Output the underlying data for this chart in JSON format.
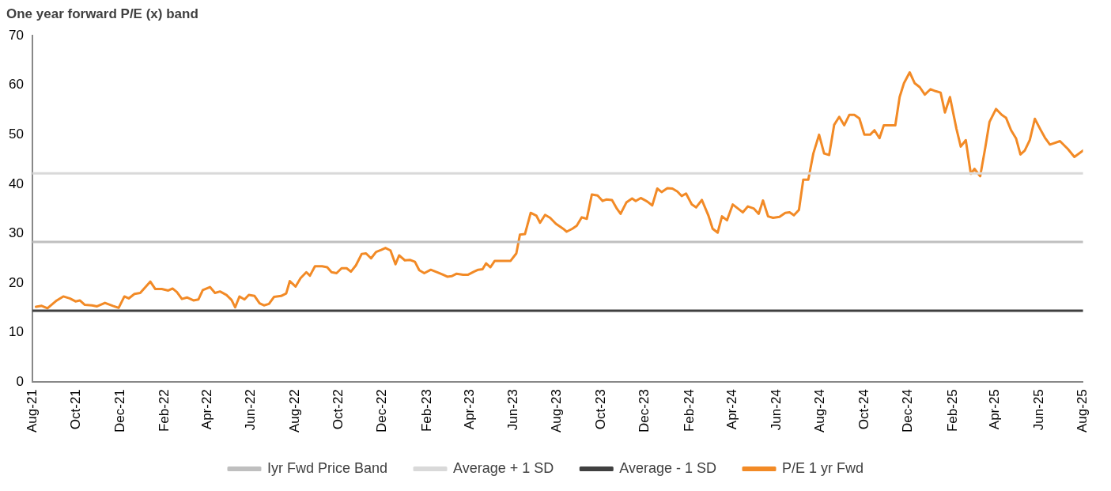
{
  "chart_data": {
    "type": "line",
    "title": "One year forward P/E (x) band",
    "xlim": [
      "2021-08-01",
      "2025-08-01"
    ],
    "xticks": [
      {
        "value": "2021-08-01",
        "label": "Aug-21"
      },
      {
        "value": "2021-10-01",
        "label": "Oct-21"
      },
      {
        "value": "2021-12-01",
        "label": "Dec-21"
      },
      {
        "value": "2022-02-01",
        "label": "Feb-22"
      },
      {
        "value": "2022-04-01",
        "label": "Apr-22"
      },
      {
        "value": "2022-06-01",
        "label": "Jun-22"
      },
      {
        "value": "2022-08-01",
        "label": "Aug-22"
      },
      {
        "value": "2022-10-01",
        "label": "Oct-22"
      },
      {
        "value": "2022-12-01",
        "label": "Dec-22"
      },
      {
        "value": "2023-02-01",
        "label": "Feb-23"
      },
      {
        "value": "2023-04-01",
        "label": "Apr-23"
      },
      {
        "value": "2023-06-01",
        "label": "Jun-23"
      },
      {
        "value": "2023-08-01",
        "label": "Aug-23"
      },
      {
        "value": "2023-10-01",
        "label": "Oct-23"
      },
      {
        "value": "2023-12-01",
        "label": "Dec-23"
      },
      {
        "value": "2024-02-01",
        "label": "Feb-24"
      },
      {
        "value": "2024-04-01",
        "label": "Apr-24"
      },
      {
        "value": "2024-06-01",
        "label": "Jun-24"
      },
      {
        "value": "2024-08-01",
        "label": "Aug-24"
      },
      {
        "value": "2024-10-01",
        "label": "Oct-24"
      },
      {
        "value": "2024-12-01",
        "label": "Dec-24"
      },
      {
        "value": "2025-02-01",
        "label": "Feb-25"
      },
      {
        "value": "2025-04-01",
        "label": "Apr-25"
      },
      {
        "value": "2025-06-01",
        "label": "Jun-25"
      },
      {
        "value": "2025-08-01",
        "label": "Aug-25"
      }
    ],
    "ylim": [
      0,
      70
    ],
    "yticks": [
      0,
      10,
      20,
      30,
      40,
      50,
      60,
      70
    ],
    "grid": false,
    "legend": "bottom",
    "marker": "none",
    "line_style": "solid",
    "series": [
      {
        "name": "Iyr Fwd Price Band",
        "color": "#bfbfbf",
        "x": [
          "2021-08-01",
          "2025-08-01"
        ],
        "values": [
          28.3,
          28.3
        ]
      },
      {
        "name": "Average + 1 SD",
        "color": "#d9d9d9",
        "x": [
          "2021-08-01",
          "2025-08-01"
        ],
        "values": [
          42.2,
          42.2
        ]
      },
      {
        "name": "Average - 1 SD",
        "color": "#404040",
        "x": [
          "2021-08-01",
          "2025-08-01"
        ],
        "values": [
          14.4,
          14.4
        ]
      },
      {
        "name": "P/E 1 yr Fwd",
        "color": "#f28a26",
        "x": [
          "2021-08-06",
          "2021-08-14",
          "2021-08-22",
          "2021-09-04",
          "2021-09-13",
          "2021-09-22",
          "2021-09-30",
          "2021-10-06",
          "2021-10-13",
          "2021-10-23",
          "2021-10-30",
          "2021-11-10",
          "2021-11-21",
          "2021-11-29",
          "2021-12-07",
          "2021-12-13",
          "2021-12-21",
          "2021-12-29",
          "2022-01-12",
          "2022-01-19",
          "2022-01-28",
          "2022-02-06",
          "2022-02-12",
          "2022-02-18",
          "2022-02-25",
          "2022-03-04",
          "2022-03-13",
          "2022-03-20",
          "2022-03-26",
          "2022-04-05",
          "2022-04-12",
          "2022-04-19",
          "2022-04-28",
          "2022-05-05",
          "2022-05-10",
          "2022-05-16",
          "2022-05-23",
          "2022-05-29",
          "2022-06-06",
          "2022-06-13",
          "2022-06-19",
          "2022-06-26",
          "2022-07-03",
          "2022-07-13",
          "2022-07-20",
          "2022-07-25",
          "2022-08-02",
          "2022-08-09",
          "2022-08-17",
          "2022-08-22",
          "2022-08-29",
          "2022-09-08",
          "2022-09-15",
          "2022-09-21",
          "2022-09-28",
          "2022-10-05",
          "2022-10-12",
          "2022-10-18",
          "2022-10-25",
          "2022-11-02",
          "2022-11-08",
          "2022-11-15",
          "2022-11-22",
          "2022-11-29",
          "2022-12-05",
          "2022-12-12",
          "2022-12-19",
          "2022-12-24",
          "2023-01-01",
          "2023-01-08",
          "2023-01-15",
          "2023-01-21",
          "2023-01-28",
          "2023-02-06",
          "2023-02-15",
          "2023-02-23",
          "2023-03-01",
          "2023-03-07",
          "2023-03-14",
          "2023-03-23",
          "2023-03-30",
          "2023-04-07",
          "2023-04-13",
          "2023-04-19",
          "2023-04-24",
          "2023-04-30",
          "2023-05-06",
          "2023-05-17",
          "2023-05-28",
          "2023-06-05",
          "2023-06-10",
          "2023-06-17",
          "2023-06-25",
          "2023-07-03",
          "2023-07-08",
          "2023-07-15",
          "2023-07-22",
          "2023-07-30",
          "2023-08-09",
          "2023-08-14",
          "2023-08-22",
          "2023-08-28",
          "2023-09-04",
          "2023-09-11",
          "2023-09-18",
          "2023-09-26",
          "2023-10-03",
          "2023-10-08",
          "2023-10-16",
          "2023-10-23",
          "2023-10-28",
          "2023-11-05",
          "2023-11-13",
          "2023-11-18",
          "2023-11-25",
          "2023-12-04",
          "2023-12-11",
          "2023-12-18",
          "2023-12-24",
          "2024-01-01",
          "2024-01-08",
          "2024-01-15",
          "2024-01-21",
          "2024-01-27",
          "2024-02-04",
          "2024-02-10",
          "2024-02-18",
          "2024-02-27",
          "2024-03-04",
          "2024-03-11",
          "2024-03-17",
          "2024-03-24",
          "2024-04-01",
          "2024-04-08",
          "2024-04-15",
          "2024-04-22",
          "2024-04-30",
          "2024-05-07",
          "2024-05-13",
          "2024-05-20",
          "2024-05-27",
          "2024-06-05",
          "2024-06-13",
          "2024-06-19",
          "2024-06-25",
          "2024-07-02",
          "2024-07-08",
          "2024-07-15",
          "2024-07-22",
          "2024-07-30",
          "2024-08-06",
          "2024-08-13",
          "2024-08-20",
          "2024-08-27",
          "2024-09-03",
          "2024-09-10",
          "2024-09-17",
          "2024-09-24",
          "2024-10-01",
          "2024-10-09",
          "2024-10-15",
          "2024-10-22",
          "2024-10-28",
          "2024-11-05",
          "2024-11-13",
          "2024-11-19",
          "2024-11-25",
          "2024-12-03",
          "2024-12-10",
          "2024-12-17",
          "2024-12-24",
          "2025-01-01",
          "2025-01-08",
          "2025-01-15",
          "2025-01-21",
          "2025-01-28",
          "2025-02-06",
          "2025-02-12",
          "2025-02-19",
          "2025-02-26",
          "2025-03-03",
          "2025-03-11",
          "2025-03-18",
          "2025-03-24",
          "2025-04-02",
          "2025-04-10",
          "2025-04-16",
          "2025-04-23",
          "2025-04-30",
          "2025-05-06",
          "2025-05-12",
          "2025-05-19",
          "2025-05-26",
          "2025-06-03",
          "2025-06-09",
          "2025-06-16",
          "2025-06-30",
          "2025-07-11",
          "2025-07-20",
          "2025-08-01"
        ],
        "values": [
          15.2,
          15.4,
          14.9,
          16.5,
          17.3,
          16.9,
          16.3,
          16.5,
          15.6,
          15.5,
          15.3,
          16.0,
          15.4,
          15.0,
          17.3,
          16.9,
          17.8,
          18.0,
          20.3,
          18.8,
          18.8,
          18.5,
          18.9,
          18.2,
          16.8,
          17.1,
          16.5,
          16.7,
          18.6,
          19.2,
          18.0,
          18.3,
          17.6,
          16.6,
          15.1,
          17.3,
          16.7,
          17.6,
          17.4,
          15.9,
          15.5,
          15.8,
          17.2,
          17.4,
          17.9,
          20.4,
          19.3,
          21.0,
          22.2,
          21.5,
          23.4,
          23.4,
          23.2,
          22.2,
          22.0,
          23.0,
          23.0,
          22.3,
          23.6,
          25.9,
          26.0,
          25.0,
          26.3,
          26.7,
          27.1,
          26.6,
          23.8,
          25.6,
          24.6,
          24.7,
          24.3,
          22.6,
          22.0,
          22.7,
          22.2,
          21.7,
          21.3,
          21.4,
          21.9,
          21.7,
          21.7,
          22.3,
          22.7,
          22.8,
          24.0,
          23.2,
          24.5,
          24.5,
          24.5,
          26.0,
          29.8,
          29.9,
          34.2,
          33.6,
          32.2,
          33.8,
          33.2,
          32.0,
          31.0,
          30.4,
          31.0,
          31.6,
          33.3,
          33.0,
          37.9,
          37.7,
          36.6,
          36.9,
          36.8,
          35.0,
          34.0,
          36.3,
          37.1,
          36.6,
          37.2,
          36.5,
          35.7,
          39.1,
          38.4,
          39.2,
          39.1,
          38.5,
          37.6,
          38.1,
          35.9,
          35.3,
          36.8,
          33.7,
          31.0,
          30.2,
          33.5,
          32.7,
          35.9,
          35.1,
          34.3,
          35.5,
          35.1,
          34.0,
          36.7,
          33.5,
          33.2,
          33.4,
          34.2,
          34.3,
          33.7,
          34.8,
          40.9,
          40.9,
          46.2,
          50.0,
          46.2,
          45.9,
          52.0,
          53.6,
          51.9,
          54.0,
          54.0,
          53.3,
          50.0,
          50.0,
          50.9,
          49.3,
          51.9,
          51.9,
          51.9,
          57.6,
          60.4,
          62.6,
          60.4,
          59.6,
          58.1,
          59.2,
          58.8,
          58.5,
          54.5,
          57.6,
          51.2,
          47.6,
          48.9,
          42.1,
          43.1,
          41.6,
          47.3,
          52.6,
          55.2,
          54.0,
          53.4,
          50.9,
          49.2,
          46.0,
          46.8,
          48.9,
          53.2,
          51.0,
          49.4,
          48.0,
          48.7,
          47.1,
          45.5,
          46.8
        ]
      }
    ]
  }
}
